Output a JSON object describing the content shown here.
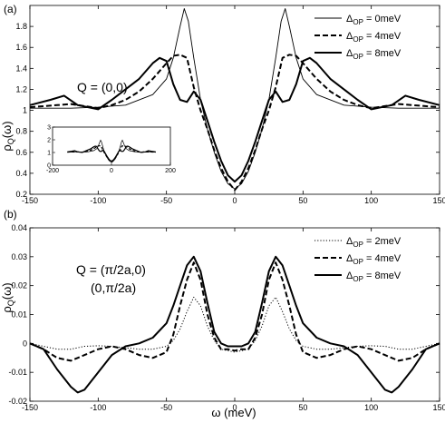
{
  "chart_data": [
    {
      "type": "line",
      "panel_label": "(a)",
      "annotation": "Q = (0,0)",
      "ylabel": "ρ",
      "ylabel_sub": "Q",
      "ylabel_suffix": "(ω)",
      "xlim": [
        -150,
        150
      ],
      "ylim": [
        0.2,
        2.0
      ],
      "xticks": [
        -150,
        -100,
        -50,
        0,
        50,
        100,
        150
      ],
      "yticks": [
        0.2,
        0.4,
        0.6,
        0.8,
        1,
        1.2,
        1.4,
        1.6,
        1.8
      ],
      "legend_position": "top-right",
      "series": [
        {
          "name_main": "Δ",
          "name_sub": "OP",
          "name_rest": " = 0meV",
          "style": "thin",
          "x": [
            -150,
            -120,
            -100,
            -80,
            -60,
            -50,
            -45,
            -40,
            -37,
            -34,
            -30,
            -25,
            -20,
            -15,
            -10,
            -5,
            0,
            5,
            10,
            15,
            20,
            25,
            30,
            34,
            37,
            40,
            45,
            50,
            60,
            80,
            100,
            120,
            150
          ],
          "y": [
            1.02,
            1.02,
            1.03,
            1.05,
            1.15,
            1.3,
            1.5,
            1.8,
            1.97,
            1.85,
            1.5,
            1.1,
            0.82,
            0.6,
            0.42,
            0.3,
            0.25,
            0.3,
            0.42,
            0.6,
            0.82,
            1.1,
            1.5,
            1.85,
            1.97,
            1.8,
            1.5,
            1.3,
            1.15,
            1.05,
            1.03,
            1.02,
            1.02
          ]
        },
        {
          "name_main": "Δ",
          "name_sub": "OP",
          "name_rest": " = 4meV",
          "style": "dashed",
          "x": [
            -150,
            -130,
            -120,
            -110,
            -100,
            -90,
            -80,
            -70,
            -60,
            -50,
            -45,
            -40,
            -35,
            -30,
            -25,
            -20,
            -15,
            -10,
            -5,
            0,
            5,
            10,
            15,
            20,
            25,
            30,
            35,
            40,
            45,
            50,
            60,
            70,
            80,
            90,
            100,
            110,
            120,
            130,
            150
          ],
          "y": [
            1.03,
            1.05,
            1.06,
            1.04,
            1.02,
            1.05,
            1.1,
            1.18,
            1.3,
            1.45,
            1.52,
            1.53,
            1.5,
            1.22,
            1.0,
            0.82,
            0.62,
            0.45,
            0.32,
            0.24,
            0.32,
            0.45,
            0.62,
            0.82,
            1.0,
            1.22,
            1.5,
            1.53,
            1.52,
            1.45,
            1.3,
            1.18,
            1.1,
            1.05,
            1.02,
            1.04,
            1.06,
            1.05,
            1.03
          ]
        },
        {
          "name_main": "Δ",
          "name_sub": "OP",
          "name_rest": " = 8meV",
          "style": "thick",
          "x": [
            -150,
            -135,
            -125,
            -115,
            -100,
            -90,
            -80,
            -70,
            -60,
            -55,
            -50,
            -45,
            -40,
            -35,
            -30,
            -25,
            -20,
            -15,
            -10,
            -5,
            0,
            5,
            10,
            15,
            20,
            25,
            30,
            35,
            40,
            45,
            50,
            55,
            60,
            70,
            80,
            90,
            100,
            115,
            125,
            135,
            150
          ],
          "y": [
            1.05,
            1.1,
            1.14,
            1.05,
            1.01,
            1.1,
            1.2,
            1.3,
            1.45,
            1.5,
            1.47,
            1.25,
            1.1,
            1.08,
            1.18,
            1.1,
            0.9,
            0.7,
            0.52,
            0.38,
            0.32,
            0.38,
            0.52,
            0.7,
            0.9,
            1.1,
            1.18,
            1.08,
            1.1,
            1.25,
            1.47,
            1.5,
            1.45,
            1.3,
            1.2,
            1.1,
            1.01,
            1.05,
            1.14,
            1.1,
            1.05
          ]
        }
      ],
      "inset": {
        "xlim": [
          -200,
          200
        ],
        "ylim": [
          0,
          3
        ],
        "xticks": [
          -200,
          0,
          200
        ],
        "yticks": [
          0,
          1,
          2,
          3
        ]
      }
    },
    {
      "type": "line",
      "panel_label": "(b)",
      "annotation": "Q = (π/2a,0)",
      "annotation2": "(0,π/2a)",
      "ylabel": "ρ",
      "ylabel_sub": "Q",
      "ylabel_suffix": "(ω)",
      "xlabel": "ω (meV)",
      "xlim": [
        -150,
        150
      ],
      "ylim": [
        -0.02,
        0.04
      ],
      "xticks": [
        -150,
        -100,
        -50,
        0,
        50,
        100,
        150
      ],
      "yticks": [
        -0.02,
        -0.01,
        0,
        0.01,
        0.02,
        0.03,
        0.04
      ],
      "legend_position": "top-right",
      "series": [
        {
          "name_main": "Δ",
          "name_sub": "OP",
          "name_rest": " = 2meV",
          "style": "dotted",
          "x": [
            -150,
            -140,
            -130,
            -120,
            -110,
            -100,
            -90,
            -80,
            -70,
            -60,
            -50,
            -45,
            -40,
            -35,
            -30,
            -25,
            -20,
            -15,
            -10,
            -5,
            0,
            5,
            10,
            15,
            20,
            25,
            30,
            35,
            40,
            45,
            50,
            60,
            70,
            80,
            90,
            100,
            110,
            120,
            130,
            140,
            150
          ],
          "y": [
            0,
            -0.001,
            -0.002,
            -0.002,
            -0.001,
            -0.0008,
            -0.001,
            -0.0015,
            -0.002,
            -0.002,
            -0.001,
            0.001,
            0.005,
            0.011,
            0.016,
            0.013,
            0.006,
            0.001,
            -0.002,
            -0.0025,
            -0.003,
            -0.0025,
            -0.002,
            0.001,
            0.006,
            0.013,
            0.016,
            0.011,
            0.005,
            0.001,
            -0.001,
            -0.002,
            -0.002,
            -0.0015,
            -0.001,
            -0.0008,
            -0.001,
            -0.002,
            -0.002,
            -0.001,
            0
          ]
        },
        {
          "name_main": "Δ",
          "name_sub": "OP",
          "name_rest": " = 4meV",
          "style": "dashed",
          "x": [
            -150,
            -140,
            -130,
            -120,
            -110,
            -100,
            -90,
            -80,
            -70,
            -60,
            -50,
            -45,
            -40,
            -35,
            -30,
            -25,
            -20,
            -15,
            -10,
            -5,
            0,
            5,
            10,
            15,
            20,
            25,
            30,
            35,
            40,
            45,
            50,
            60,
            70,
            80,
            90,
            100,
            110,
            120,
            130,
            140,
            150
          ],
          "y": [
            0,
            -0.002,
            -0.005,
            -0.006,
            -0.004,
            -0.002,
            -0.001,
            -0.002,
            -0.004,
            -0.005,
            -0.003,
            0.003,
            0.013,
            0.022,
            0.028,
            0.022,
            0.01,
            0.002,
            -0.002,
            -0.002,
            -0.0025,
            -0.002,
            -0.002,
            0.002,
            0.01,
            0.022,
            0.028,
            0.022,
            0.013,
            0.003,
            -0.003,
            -0.005,
            -0.004,
            -0.002,
            -0.001,
            -0.002,
            -0.004,
            -0.006,
            -0.005,
            -0.002,
            0
          ]
        },
        {
          "name_main": "Δ",
          "name_sub": "OP",
          "name_rest": " = 8meV",
          "style": "thick",
          "x": [
            -150,
            -140,
            -130,
            -120,
            -115,
            -110,
            -100,
            -90,
            -80,
            -70,
            -60,
            -50,
            -45,
            -40,
            -35,
            -30,
            -25,
            -20,
            -15,
            -10,
            -5,
            0,
            5,
            10,
            15,
            20,
            25,
            30,
            35,
            40,
            45,
            50,
            60,
            70,
            80,
            90,
            100,
            110,
            115,
            120,
            130,
            140,
            150
          ],
          "y": [
            0,
            -0.002,
            -0.009,
            -0.015,
            -0.017,
            -0.016,
            -0.01,
            -0.004,
            -0.001,
            0,
            0.002,
            0.007,
            0.013,
            0.02,
            0.027,
            0.03,
            0.025,
            0.014,
            0.004,
            0,
            -0.001,
            -0.001,
            -0.001,
            0,
            0.004,
            0.014,
            0.025,
            0.03,
            0.027,
            0.02,
            0.013,
            0.007,
            0.002,
            0,
            -0.001,
            -0.004,
            -0.01,
            -0.016,
            -0.017,
            -0.015,
            -0.009,
            -0.002,
            0
          ]
        }
      ]
    }
  ]
}
